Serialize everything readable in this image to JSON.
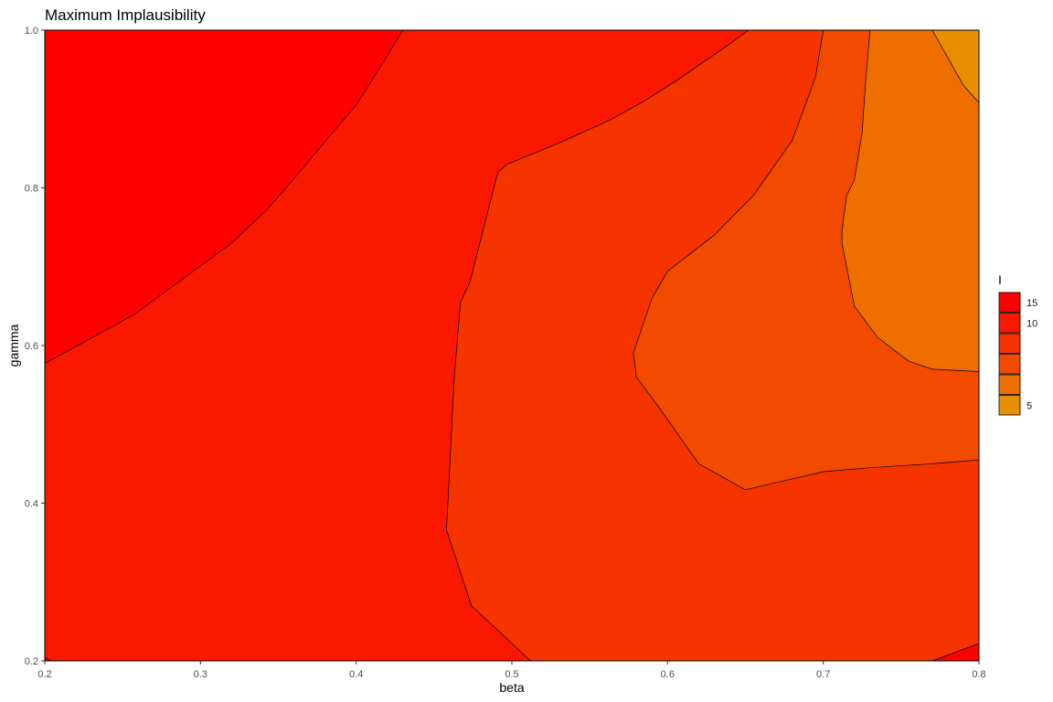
{
  "chart_data": {
    "type": "contour",
    "title": "Maximum Implausibility",
    "xlabel": "beta",
    "ylabel": "gamma",
    "xlim": [
      0.2,
      0.8
    ],
    "ylim": [
      0.2,
      1.0
    ],
    "x_ticks": [
      {
        "value": 0.2,
        "label": "0.2"
      },
      {
        "value": 0.3,
        "label": "0.3"
      },
      {
        "value": 0.4,
        "label": "0.4"
      },
      {
        "value": 0.5,
        "label": "0.5"
      },
      {
        "value": 0.6,
        "label": "0.6"
      },
      {
        "value": 0.7,
        "label": "0.7"
      },
      {
        "value": 0.8,
        "label": "0.8"
      }
    ],
    "y_ticks": [
      {
        "value": 0.2,
        "label": "0.2"
      },
      {
        "value": 0.4,
        "label": "0.4"
      },
      {
        "value": 0.6,
        "label": "0.6"
      },
      {
        "value": 0.8,
        "label": "0.8"
      },
      {
        "value": 1.0,
        "label": "1.0"
      }
    ],
    "legend": {
      "title": "I",
      "placement": "right",
      "entries": [
        {
          "label": "15",
          "color": "#ff0000"
        },
        {
          "label": "10",
          "color": "#fa1900"
        },
        {
          "label": "",
          "color": "#f63400"
        },
        {
          "label": "",
          "color": "#f24b00"
        },
        {
          "label": "",
          "color": "#ef6e00"
        },
        {
          "label": "5",
          "color": "#e88e00"
        }
      ]
    },
    "regions": [
      {
        "level": 2,
        "color": "#f63400",
        "points": [
          [
            0.2,
            0.2
          ],
          [
            0.8,
            0.2
          ],
          [
            0.8,
            1.0
          ],
          [
            0.2,
            1.0
          ]
        ]
      },
      {
        "level": 1,
        "color": "#fa1900",
        "points": [
          [
            0.2,
            0.2
          ],
          [
            0.512,
            0.2
          ],
          [
            0.474,
            0.27
          ],
          [
            0.458,
            0.366
          ],
          [
            0.463,
            0.56
          ],
          [
            0.467,
            0.655
          ],
          [
            0.473,
            0.68
          ],
          [
            0.491,
            0.82
          ],
          [
            0.497,
            0.83
          ],
          [
            0.528,
            0.855
          ],
          [
            0.562,
            0.885
          ],
          [
            0.585,
            0.91
          ],
          [
            0.605,
            0.935
          ],
          [
            0.638,
            0.98
          ],
          [
            0.652,
            1.0
          ],
          [
            0.2,
            1.0
          ]
        ]
      },
      {
        "level": 0,
        "color": "#ff0000",
        "points": [
          [
            0.2,
            0.577
          ],
          [
            0.258,
            0.64
          ],
          [
            0.32,
            0.73
          ],
          [
            0.343,
            0.773
          ],
          [
            0.355,
            0.8
          ],
          [
            0.387,
            0.875
          ],
          [
            0.4,
            0.905
          ],
          [
            0.416,
            0.955
          ],
          [
            0.43,
            1.0
          ],
          [
            0.2,
            1.0
          ]
        ]
      },
      {
        "level": 0,
        "color": "#ff0000",
        "points": [
          [
            0.2,
            0.2
          ],
          [
            0.204,
            0.2
          ],
          [
            0.2,
            0.205
          ]
        ]
      },
      {
        "level": 0,
        "color": "#ff0000",
        "points": [
          [
            0.77,
            0.2
          ],
          [
            0.8,
            0.2
          ],
          [
            0.8,
            0.222
          ]
        ]
      },
      {
        "level": 3,
        "color": "#f24b00",
        "points": [
          [
            0.8,
            0.455
          ],
          [
            0.77,
            0.45
          ],
          [
            0.73,
            0.445
          ],
          [
            0.7,
            0.44
          ],
          [
            0.65,
            0.417
          ],
          [
            0.62,
            0.45
          ],
          [
            0.595,
            0.52
          ],
          [
            0.58,
            0.56
          ],
          [
            0.578,
            0.59
          ],
          [
            0.583,
            0.62
          ],
          [
            0.59,
            0.66
          ],
          [
            0.6,
            0.694
          ],
          [
            0.63,
            0.74
          ],
          [
            0.655,
            0.79
          ],
          [
            0.68,
            0.86
          ],
          [
            0.695,
            0.94
          ],
          [
            0.7,
            1.0
          ],
          [
            0.8,
            1.0
          ]
        ]
      },
      {
        "level": 4,
        "color": "#ef6e00",
        "points": [
          [
            0.8,
            0.567
          ],
          [
            0.77,
            0.57
          ],
          [
            0.755,
            0.58
          ],
          [
            0.735,
            0.61
          ],
          [
            0.72,
            0.65
          ],
          [
            0.712,
            0.73
          ],
          [
            0.712,
            0.745
          ],
          [
            0.715,
            0.79
          ],
          [
            0.72,
            0.81
          ],
          [
            0.725,
            0.87
          ],
          [
            0.727,
            0.93
          ],
          [
            0.73,
            1.0
          ],
          [
            0.8,
            1.0
          ]
        ]
      },
      {
        "level": 5,
        "color": "#e88e00",
        "points": [
          [
            0.8,
            0.908
          ],
          [
            0.79,
            0.93
          ],
          [
            0.78,
            0.965
          ],
          [
            0.77,
            1.0
          ],
          [
            0.8,
            1.0
          ]
        ]
      }
    ]
  }
}
